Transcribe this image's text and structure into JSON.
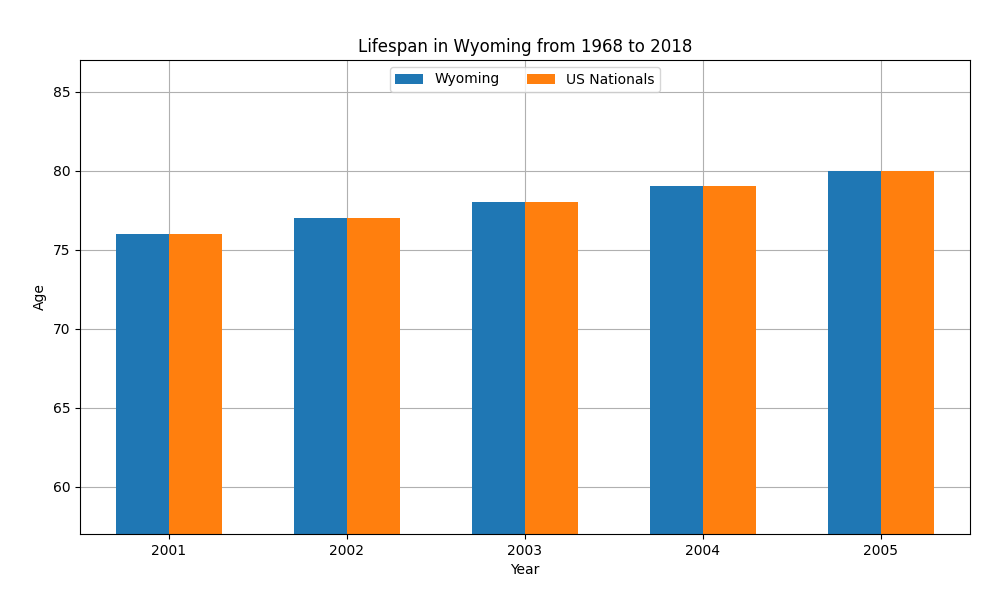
{
  "chart_data": {
    "type": "bar",
    "title": "Lifespan in Wyoming from 1968 to 2018",
    "x_label": "Year",
    "y_label": "Age",
    "categories": [
      "2001",
      "2002",
      "2003",
      "2004",
      "2005"
    ],
    "series": [
      {
        "name": "Wyoming",
        "values": [
          76,
          77,
          78,
          79,
          80
        ]
      },
      {
        "name": "US Nationals",
        "values": [
          76,
          77,
          78,
          79,
          80
        ]
      }
    ],
    "ylim": [
      57,
      87
    ],
    "yticks": [
      60,
      65,
      70,
      75,
      80,
      85
    ],
    "grid": true,
    "legend": "upper center"
  }
}
